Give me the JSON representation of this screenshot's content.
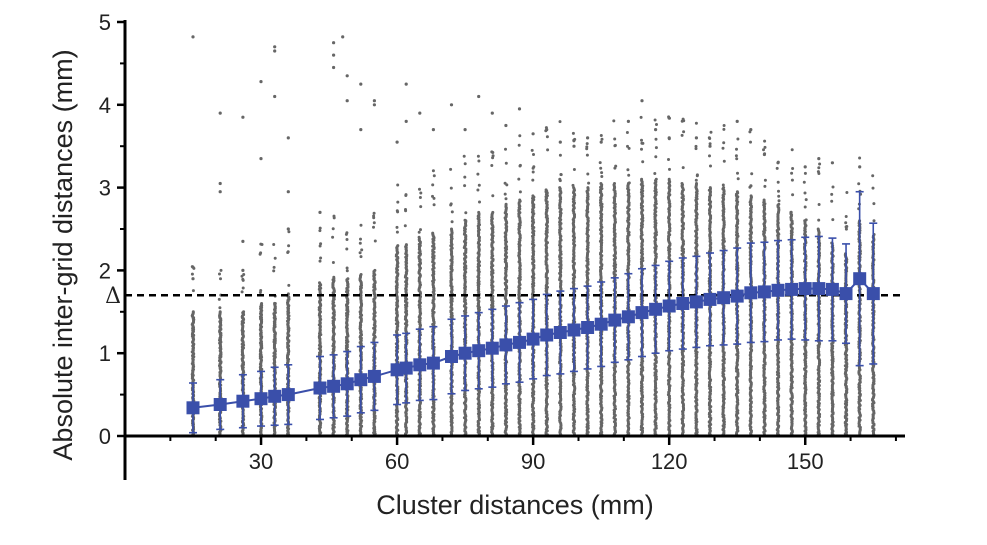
{
  "chart_data": {
    "type": "scatter",
    "title": "",
    "xlabel": "Cluster distances (mm)",
    "ylabel": "Absolute inter-grid distances (mm)",
    "xlim": [
      0,
      172
    ],
    "ylim": [
      0,
      5
    ],
    "x_ticks": [
      30,
      60,
      90,
      120,
      150
    ],
    "y_ticks": [
      0,
      1,
      2,
      3,
      4,
      5
    ],
    "grid": false,
    "legend": "none",
    "colors": {
      "raw_points": "#666666",
      "mean_markers": "#3a4faa",
      "reference_line": "#000000"
    },
    "reference_line": {
      "y": 1.7,
      "label": "Δ",
      "style": "dashed"
    },
    "series": [
      {
        "kind": "mean_with_sd",
        "x": [
          15,
          21,
          26,
          30,
          33,
          36,
          43,
          46,
          49,
          52,
          55,
          60,
          62,
          65,
          68,
          72,
          75,
          78,
          81,
          84,
          87,
          90,
          93,
          96,
          99,
          102,
          105,
          108,
          111,
          114,
          117,
          120,
          123,
          126,
          129,
          132,
          135,
          138,
          141,
          144,
          147,
          150,
          153,
          156,
          159,
          162,
          165
        ],
        "y": [
          0.34,
          0.38,
          0.42,
          0.45,
          0.48,
          0.5,
          0.58,
          0.6,
          0.63,
          0.68,
          0.72,
          0.8,
          0.82,
          0.86,
          0.88,
          0.96,
          1.0,
          1.03,
          1.06,
          1.1,
          1.13,
          1.17,
          1.22,
          1.25,
          1.28,
          1.31,
          1.35,
          1.4,
          1.44,
          1.49,
          1.53,
          1.57,
          1.6,
          1.62,
          1.65,
          1.67,
          1.69,
          1.73,
          1.74,
          1.76,
          1.77,
          1.78,
          1.78,
          1.77,
          1.72,
          1.9,
          1.72
        ],
        "sd": [
          0.3,
          0.3,
          0.32,
          0.33,
          0.35,
          0.36,
          0.38,
          0.38,
          0.39,
          0.4,
          0.41,
          0.42,
          0.42,
          0.43,
          0.44,
          0.45,
          0.45,
          0.46,
          0.47,
          0.47,
          0.48,
          0.48,
          0.49,
          0.5,
          0.5,
          0.5,
          0.51,
          0.51,
          0.52,
          0.53,
          0.53,
          0.54,
          0.55,
          0.55,
          0.56,
          0.57,
          0.58,
          0.6,
          0.6,
          0.6,
          0.6,
          0.62,
          0.63,
          0.62,
          0.6,
          1.05,
          0.85
        ]
      },
      {
        "kind": "raw_points",
        "columns_x": [
          15,
          21,
          26,
          30,
          33,
          36,
          43,
          46,
          49,
          52,
          55,
          60,
          62,
          65,
          68,
          72,
          75,
          78,
          81,
          84,
          87,
          90,
          93,
          96,
          99,
          102,
          105,
          108,
          111,
          114,
          117,
          120,
          123,
          126,
          129,
          132,
          135,
          138,
          141,
          144,
          147,
          150,
          153,
          156,
          159,
          162,
          165
        ],
        "column_max_dense": [
          1.5,
          1.5,
          1.5,
          1.6,
          1.6,
          1.7,
          1.85,
          1.9,
          1.9,
          1.95,
          2.0,
          2.3,
          2.3,
          2.4,
          2.45,
          2.5,
          2.6,
          2.7,
          2.7,
          2.8,
          2.85,
          2.9,
          2.95,
          3.0,
          3.0,
          3.0,
          3.05,
          3.05,
          3.05,
          3.1,
          3.1,
          3.1,
          3.05,
          3.05,
          3.0,
          3.0,
          2.95,
          2.9,
          2.85,
          2.8,
          2.7,
          2.6,
          2.5,
          2.3,
          2.2,
          2.6,
          2.4
        ],
        "outliers": [
          [
            15,
            4.82
          ],
          [
            15,
            1.9
          ],
          [
            21,
            3.9
          ],
          [
            21,
            3.05
          ],
          [
            21,
            2.95
          ],
          [
            26,
            3.85
          ],
          [
            26,
            2.35
          ],
          [
            26,
            2.0
          ],
          [
            30,
            4.28
          ],
          [
            30,
            3.35
          ],
          [
            33,
            4.7
          ],
          [
            33,
            4.65
          ],
          [
            33,
            4.1
          ],
          [
            36,
            3.6
          ],
          [
            36,
            2.95
          ],
          [
            36,
            2.5
          ],
          [
            43,
            2.7
          ],
          [
            46,
            4.75
          ],
          [
            46,
            4.6
          ],
          [
            46,
            4.45
          ],
          [
            48,
            4.82
          ],
          [
            49,
            4.05
          ],
          [
            49,
            4.35
          ],
          [
            52,
            4.25
          ],
          [
            52,
            3.7
          ],
          [
            55,
            4.05
          ],
          [
            55,
            4.0
          ],
          [
            60,
            3.55
          ],
          [
            62,
            3.8
          ],
          [
            62,
            4.25
          ],
          [
            65,
            3.9
          ],
          [
            68,
            3.7
          ],
          [
            72,
            4.0
          ],
          [
            75,
            3.7
          ],
          [
            78,
            4.1
          ],
          [
            81,
            3.9
          ],
          [
            84,
            3.75
          ],
          [
            87,
            3.95
          ],
          [
            90,
            3.65
          ],
          [
            93,
            3.7
          ],
          [
            96,
            3.55
          ],
          [
            99,
            3.5
          ],
          [
            102,
            3.6
          ],
          [
            105,
            3.55
          ],
          [
            111,
            3.8
          ],
          [
            114,
            4.05
          ],
          [
            117,
            3.7
          ],
          [
            120,
            3.6
          ],
          [
            126,
            3.6
          ],
          [
            129,
            3.5
          ],
          [
            135,
            3.8
          ],
          [
            138,
            3.7
          ],
          [
            141,
            3.4
          ],
          [
            144,
            3.3
          ],
          [
            150,
            3.25
          ],
          [
            153,
            3.35
          ],
          [
            156,
            3.3
          ],
          [
            159,
            0.25
          ],
          [
            162,
            3.25
          ]
        ]
      }
    ]
  }
}
